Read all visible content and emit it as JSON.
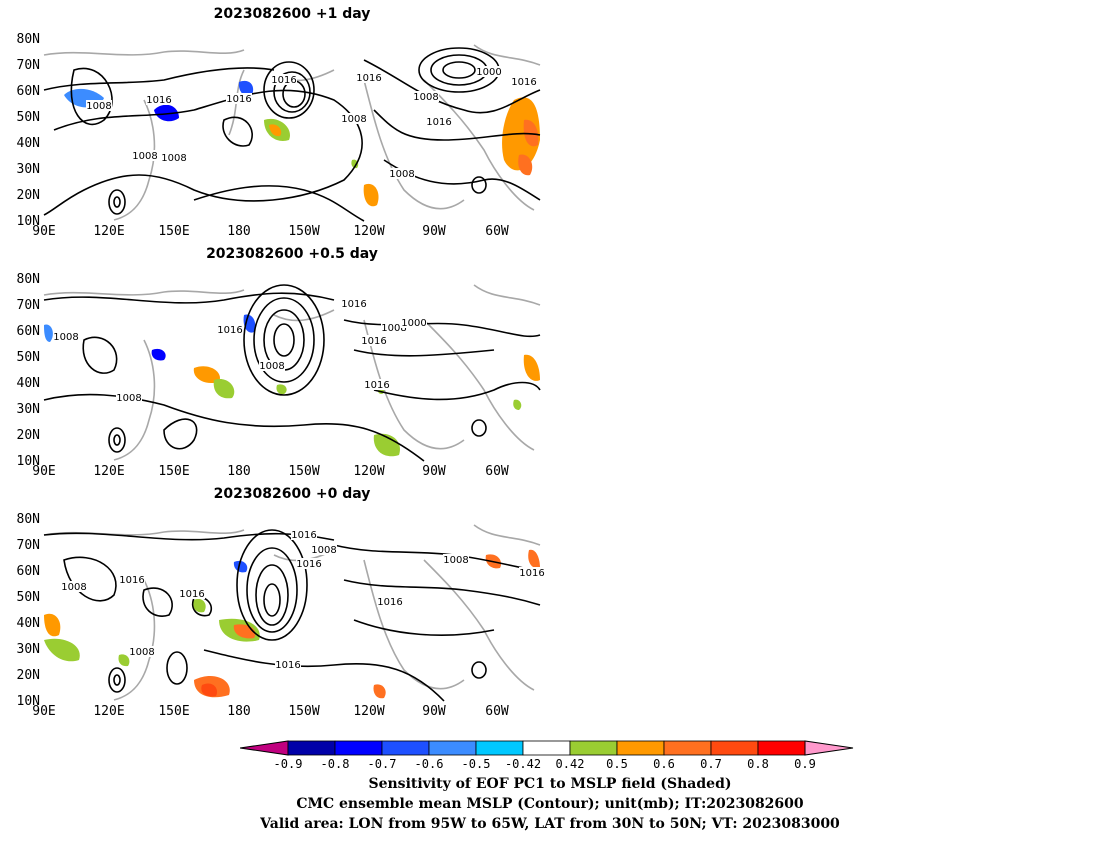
{
  "panels": [
    {
      "title": "2023082600  +1  day",
      "contour_labels": [
        "1008",
        "1016",
        "1008",
        "1016",
        "1008",
        "1016",
        "1000",
        "1008",
        "1016",
        "1016",
        "1008",
        "1016",
        "1008"
      ]
    },
    {
      "title": "2023082600  +0.5  day",
      "contour_labels": [
        "1008",
        "1016",
        "1008",
        "1016",
        "1008",
        "1000",
        "1016",
        "1016",
        "1008"
      ]
    },
    {
      "title": "2023082600  +0  day",
      "contour_labels": [
        "1008",
        "1016",
        "1016",
        "1016",
        "1008",
        "1016",
        "1008",
        "1016",
        "1016",
        "1016",
        "1008"
      ]
    }
  ],
  "axes": {
    "y_ticks": [
      "80N",
      "70N",
      "60N",
      "50N",
      "40N",
      "30N",
      "20N",
      "10N"
    ],
    "x_ticks": [
      "90E",
      "120E",
      "150E",
      "180",
      "150W",
      "120W",
      "90W",
      "60W"
    ]
  },
  "colorbar": {
    "levels": [
      "-0.9",
      "-0.8",
      "-0.7",
      "-0.6",
      "-0.5",
      "-0.42",
      "0.42",
      "0.5",
      "0.6",
      "0.7",
      "0.8",
      "0.9"
    ],
    "colors": [
      "#0000a8",
      "#0000ff",
      "#1e50ff",
      "#3c8cff",
      "#00c8ff",
      "#ffffff",
      "#9acd32",
      "#ff9900",
      "#ff7020",
      "#ff4a10",
      "#ff0000"
    ],
    "low_extend_color": "#c0007f",
    "high_extend_color": "#ff99cc"
  },
  "captions": {
    "line1": "Sensitivity of EOF PC1 to MSLP field (Shaded)",
    "line2": "CMC ensemble mean MSLP (Contour); unit(mb); IT:2023082600",
    "line3": "Valid area: LON from 95W to 65W, LAT from 30N to 50N; VT: 2023083000"
  },
  "chart_data": {
    "type": "heatmap",
    "description_units": "sensitivity (unitless) shaded; MSLP contours in mb",
    "shading_thresholds": [
      -0.9,
      -0.8,
      -0.7,
      -0.6,
      -0.5,
      -0.42,
      0.42,
      0.5,
      0.6,
      0.7,
      0.8,
      0.9
    ],
    "xlim": [
      "90E",
      "40W"
    ],
    "ylim": [
      "10N",
      "80N"
    ],
    "contour_levels_shown_mb": [
      1000,
      1008,
      1016
    ]
  }
}
